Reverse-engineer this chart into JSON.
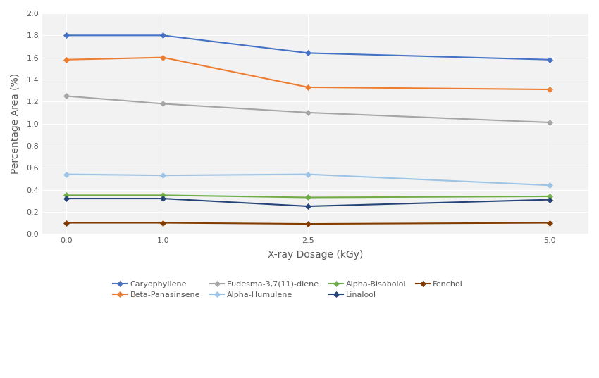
{
  "x": [
    0.0,
    1.0,
    2.5,
    5.0
  ],
  "series": [
    {
      "name": "Caryophyllene",
      "values": [
        1.8,
        1.8,
        1.64,
        1.58
      ],
      "color": "#4472C4",
      "marker": "D",
      "linestyle": "-"
    },
    {
      "name": "Beta-Panasinsene",
      "values": [
        1.58,
        1.6,
        1.33,
        1.31
      ],
      "color": "#ED7D31",
      "marker": "D",
      "linestyle": "-"
    },
    {
      "name": "Eudesma-3,7(11)-diene",
      "values": [
        1.25,
        1.18,
        1.1,
        1.01
      ],
      "color": "#A5A5A5",
      "marker": "D",
      "linestyle": "-"
    },
    {
      "name": "Alpha-Humulene",
      "values": [
        0.54,
        0.53,
        0.54,
        0.44
      ],
      "color": "#9DC3E6",
      "marker": "D",
      "linestyle": "-"
    },
    {
      "name": "Alpha-Bisabolol",
      "values": [
        0.35,
        0.35,
        0.33,
        0.34
      ],
      "color": "#70AD47",
      "marker": "D",
      "linestyle": "-"
    },
    {
      "name": "Linalool",
      "values": [
        0.32,
        0.32,
        0.25,
        0.31
      ],
      "color": "#264478",
      "marker": "D",
      "linestyle": "-"
    },
    {
      "name": "Fenchol",
      "values": [
        0.1,
        0.1,
        0.09,
        0.1
      ],
      "color": "#833C00",
      "marker": "D",
      "linestyle": "-"
    }
  ],
  "xlabel": "X-ray Dosage (kGy)",
  "ylabel": "Percentage Area (%)",
  "ylim": [
    0.0,
    2.0
  ],
  "yticks": [
    0.0,
    0.2,
    0.4,
    0.6,
    0.8,
    1.0,
    1.2,
    1.4,
    1.6,
    1.8,
    2.0
  ],
  "xtick_labels": [
    "0.0",
    "1.0",
    "2.5",
    "5.0"
  ],
  "background_color": "#FFFFFF",
  "plot_bg_color": "#F2F2F2",
  "grid_color": "#FFFFFF",
  "marker_size": 4,
  "linewidth": 1.5,
  "legend_row1": [
    "Caryophyllene",
    "Beta-Panasinsene",
    "Eudesma-3,7(11)-diene",
    "Alpha-Humulene"
  ],
  "legend_row2": [
    "Alpha-Bisabolol",
    "Linalool",
    "Fenchol"
  ],
  "legend_fontsize": 8,
  "tick_fontsize": 8,
  "axis_label_fontsize": 10
}
